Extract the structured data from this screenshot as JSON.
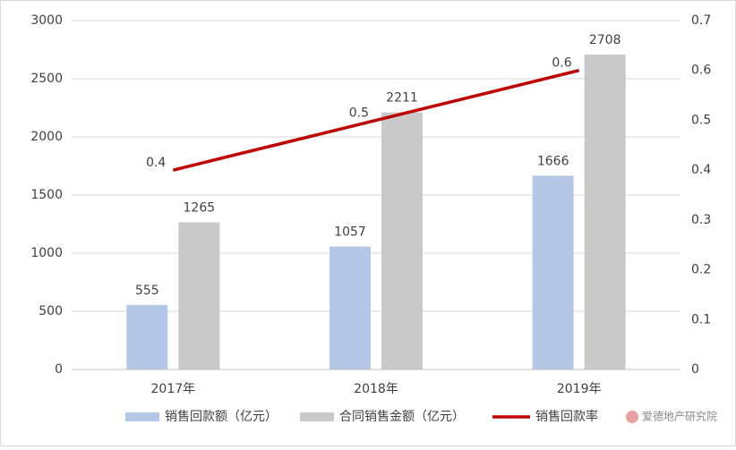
{
  "chart_data": {
    "type": "bar",
    "categories": [
      "2017年",
      "2018年",
      "2019年"
    ],
    "series": [
      {
        "name": "销售回款额（亿元）",
        "color": "#b4c7e7",
        "values": [
          555,
          1057,
          1666
        ]
      },
      {
        "name": "合同销售金额（亿元）",
        "color": "#c9c9c9",
        "values": [
          1265,
          2211,
          2708
        ]
      },
      {
        "name": "销售回款率",
        "color": "#c00000",
        "type": "line",
        "axis": "y2",
        "values": [
          0.4,
          0.5,
          0.6
        ]
      }
    ],
    "ylim": [
      0,
      3000
    ],
    "yticks": [
      0,
      500,
      1000,
      1500,
      2000,
      2500,
      3000
    ],
    "y2lim": [
      0,
      0.7
    ],
    "y2ticks": [
      0,
      0.1,
      0.2,
      0.3,
      0.4,
      0.5,
      0.6,
      0.7
    ],
    "grid": true,
    "legend": "bottom",
    "watermark": "爱德地产研究院"
  }
}
